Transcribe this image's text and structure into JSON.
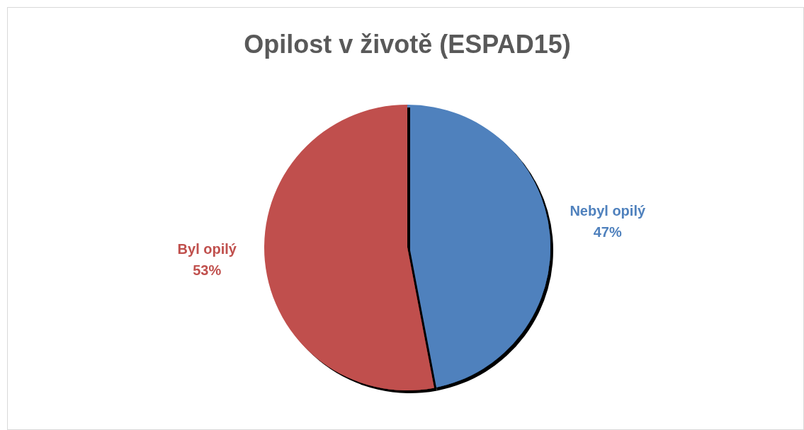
{
  "chart_data": {
    "type": "pie",
    "title": "Opilost v životě (ESPAD15)",
    "categories": [
      "Nebyl opilý",
      "Byl opilý"
    ],
    "values": [
      47,
      53
    ],
    "value_labels": [
      "47%",
      "53%"
    ],
    "colors": [
      "#4f81bd",
      "#c0504d"
    ]
  }
}
